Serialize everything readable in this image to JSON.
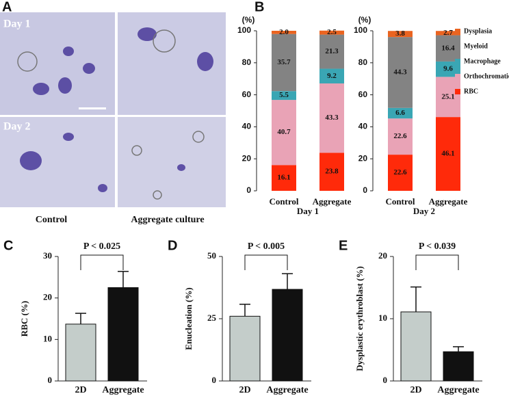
{
  "image_panel": {
    "label": "A",
    "row_labels": [
      "Day 1",
      "Day 2"
    ],
    "column_labels": [
      "Control",
      "Aggregate culture"
    ]
  },
  "chart_data": [
    {
      "type": "stacked_bar",
      "panel": "B",
      "y_label": "(%)",
      "categories": [
        "Control",
        "Aggregate",
        "Control",
        "Aggregate"
      ],
      "group_labels": [
        "Day 1",
        "Day 2"
      ],
      "ylim": [
        0,
        100
      ],
      "yticks": [
        0,
        20,
        40,
        60,
        80,
        100
      ],
      "legend": "right",
      "series": [
        {
          "name": "RBC",
          "color": "#ff2a0a",
          "values": [
            16.1,
            23.8,
            22.6,
            46.1
          ]
        },
        {
          "name": "Orthochromatic",
          "color": "#e9a3b6",
          "values": [
            40.7,
            43.3,
            22.6,
            25.1
          ]
        },
        {
          "name": "Macrophage",
          "color": "#3aa6b4",
          "values": [
            5.5,
            9.2,
            6.6,
            9.6
          ]
        },
        {
          "name": "Myeloid",
          "color": "#838383",
          "values": [
            35.7,
            21.3,
            44.3,
            16.4
          ]
        },
        {
          "name": "Dysplasia",
          "color": "#ea6420",
          "values": [
            2.0,
            2.5,
            3.8,
            2.7
          ],
          "value_labels": [
            "2.0",
            "2.5",
            "3.8",
            "2.7"
          ]
        }
      ]
    },
    {
      "type": "bar_error",
      "panel": "C",
      "y_label": "RBC (%)",
      "categories": [
        "2D",
        "Aggregate"
      ],
      "values": [
        13.7,
        22.5
      ],
      "errors": [
        2.6,
        3.9
      ],
      "colors": [
        "#c4cdca",
        "#111111"
      ],
      "ylim": [
        0,
        30
      ],
      "yticks": [
        0,
        10,
        20,
        30
      ],
      "annotation": "P < 0.025"
    },
    {
      "type": "bar_error",
      "panel": "D",
      "y_label": "Enucleation (%)",
      "categories": [
        "2D",
        "Aggregate"
      ],
      "values": [
        26,
        36.8
      ],
      "errors": [
        4.8,
        6.3
      ],
      "colors": [
        "#c4cdca",
        "#111111"
      ],
      "ylim": [
        0,
        50
      ],
      "yticks": [
        0,
        25,
        50
      ],
      "annotation": "P < 0.005"
    },
    {
      "type": "bar_error",
      "panel": "E",
      "y_label": "Dysplastic erythroblast (%)",
      "categories": [
        "2D",
        "Aggregate"
      ],
      "values": [
        11.1,
        4.7
      ],
      "errors": [
        4.0,
        0.8
      ],
      "colors": [
        "#c4cdca",
        "#111111"
      ],
      "ylim": [
        0,
        20
      ],
      "yticks": [
        0,
        10,
        20
      ],
      "annotation": "P < 0.039"
    }
  ]
}
